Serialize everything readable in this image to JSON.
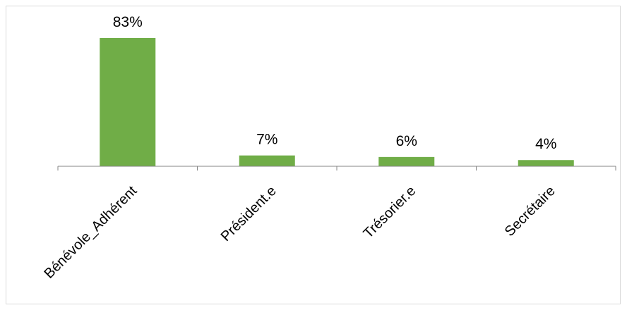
{
  "chart_data": {
    "type": "bar",
    "categories": [
      "Bénévole_Adhérent",
      "Président.e",
      "Trésorier.e",
      "Secrétaire"
    ],
    "values": [
      83,
      7,
      6,
      4
    ],
    "data_labels": [
      "83%",
      "7%",
      "6%",
      "4%"
    ],
    "title": "",
    "xlabel": "",
    "ylabel": "",
    "ylim": [
      0,
      100
    ],
    "grid": false,
    "legend": "none",
    "bar_color": "#70ad47",
    "axis_color": "#868686"
  }
}
